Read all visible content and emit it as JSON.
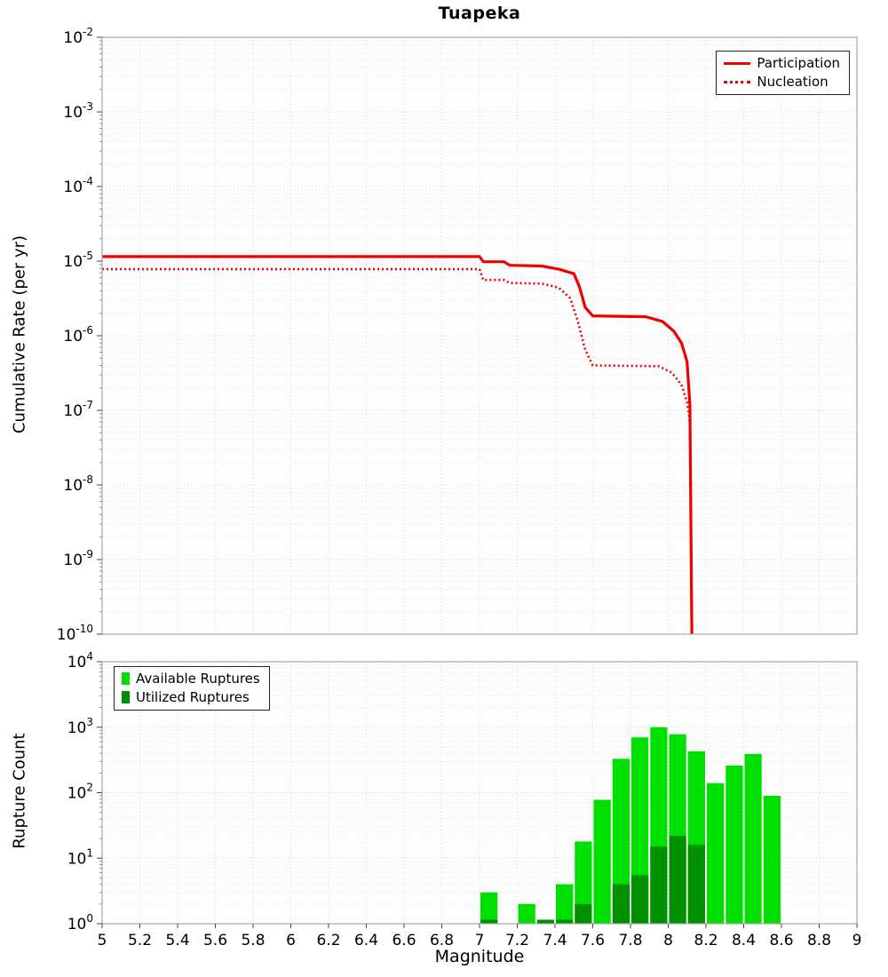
{
  "figure": {
    "title": "Tuapeka",
    "xlabel": "Magnitude",
    "x_ticks": [
      "5",
      "5.2",
      "5.4",
      "5.6",
      "5.8",
      "6",
      "6.2",
      "6.4",
      "6.6",
      "6.8",
      "7",
      "7.2",
      "7.4",
      "7.6",
      "7.8",
      "8",
      "8.2",
      "8.4",
      "8.6",
      "8.8",
      "9"
    ]
  },
  "chart_data": [
    {
      "type": "line",
      "title": "Tuapeka",
      "ylabel": "Cumulative Rate (per yr)",
      "xlabel": "Magnitude",
      "y_scale": "log",
      "ylim_exp": [
        -10,
        -2
      ],
      "xlim": [
        5,
        9
      ],
      "grid": true,
      "legend_position": "top-right",
      "series": [
        {
          "name": "Participation",
          "color": "#ee0000",
          "style": "solid",
          "points": [
            [
              5.0,
              1.15e-05
            ],
            [
              7.0,
              1.15e-05
            ],
            [
              7.02,
              9.8e-06
            ],
            [
              7.13,
              9.8e-06
            ],
            [
              7.16,
              8.8e-06
            ],
            [
              7.33,
              8.6e-06
            ],
            [
              7.42,
              7.8e-06
            ],
            [
              7.5,
              6.8e-06
            ],
            [
              7.53,
              4.5e-06
            ],
            [
              7.56,
              2.4e-06
            ],
            [
              7.6,
              1.85e-06
            ],
            [
              7.88,
              1.8e-06
            ],
            [
              7.97,
              1.55e-06
            ],
            [
              8.03,
              1.15e-06
            ],
            [
              8.07,
              8e-07
            ],
            [
              8.1,
              4.5e-07
            ],
            [
              8.115,
              1.2e-07
            ],
            [
              8.125,
              1e-10
            ]
          ]
        },
        {
          "name": "Nucleation",
          "color": "#ee0000",
          "style": "dotted",
          "points": [
            [
              5.0,
              7.8e-06
            ],
            [
              7.0,
              7.8e-06
            ],
            [
              7.02,
              5.6e-06
            ],
            [
              7.13,
              5.6e-06
            ],
            [
              7.16,
              5.1e-06
            ],
            [
              7.33,
              5e-06
            ],
            [
              7.42,
              4.4e-06
            ],
            [
              7.48,
              3.2e-06
            ],
            [
              7.52,
              1.6e-06
            ],
            [
              7.56,
              6.5e-07
            ],
            [
              7.6,
              4e-07
            ],
            [
              7.95,
              3.9e-07
            ],
            [
              8.02,
              3.2e-07
            ],
            [
              8.07,
              2.2e-07
            ],
            [
              8.1,
              1.3e-07
            ],
            [
              8.115,
              7e-08
            ],
            [
              8.125,
              1e-10
            ]
          ]
        }
      ]
    },
    {
      "type": "bar",
      "ylabel": "Rupture Count",
      "xlabel": "Magnitude",
      "y_scale": "log",
      "ylim_exp": [
        0,
        4
      ],
      "xlim": [
        5,
        9
      ],
      "grid": true,
      "bin_width": 0.1,
      "legend_position": "top-left",
      "series": [
        {
          "name": "Available Ruptures",
          "color": "#00e000",
          "bins": [
            {
              "x": 7.0,
              "count": 3
            },
            {
              "x": 7.2,
              "count": 2
            },
            {
              "x": 7.3,
              "count": 1.15
            },
            {
              "x": 7.4,
              "count": 4
            },
            {
              "x": 7.5,
              "count": 18
            },
            {
              "x": 7.6,
              "count": 78
            },
            {
              "x": 7.7,
              "count": 330
            },
            {
              "x": 7.8,
              "count": 700
            },
            {
              "x": 7.9,
              "count": 1000
            },
            {
              "x": 8.0,
              "count": 780
            },
            {
              "x": 8.1,
              "count": 430
            },
            {
              "x": 8.2,
              "count": 140
            },
            {
              "x": 8.3,
              "count": 260
            },
            {
              "x": 8.4,
              "count": 390
            },
            {
              "x": 8.5,
              "count": 90
            }
          ]
        },
        {
          "name": "Utilized Ruptures",
          "color": "#009000",
          "bins": [
            {
              "x": 7.0,
              "count": 1.15
            },
            {
              "x": 7.3,
              "count": 1.15
            },
            {
              "x": 7.4,
              "count": 1.15
            },
            {
              "x": 7.5,
              "count": 2
            },
            {
              "x": 7.7,
              "count": 4
            },
            {
              "x": 7.8,
              "count": 5.5
            },
            {
              "x": 7.9,
              "count": 15
            },
            {
              "x": 8.0,
              "count": 22
            },
            {
              "x": 8.1,
              "count": 16
            }
          ]
        }
      ]
    }
  ]
}
